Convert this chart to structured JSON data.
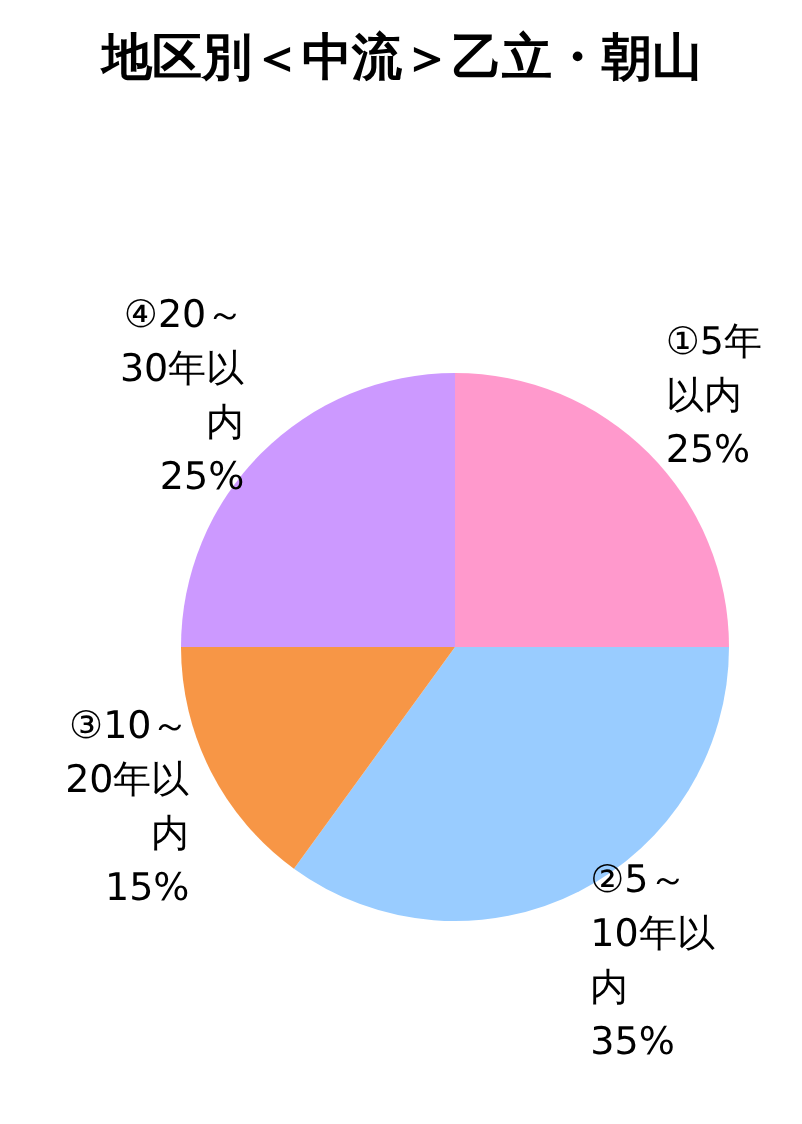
{
  "chart_data": {
    "type": "pie",
    "title": "地区別＜中流＞乙立・朝山",
    "categories": [
      "①5年以内",
      "②5～10年以内",
      "③10～20年以内",
      "④20～30年以内"
    ],
    "values": [
      25,
      35,
      15,
      25
    ],
    "value_labels": [
      "25%",
      "35%",
      "15%",
      "25%"
    ],
    "colors": [
      "#ff99cc",
      "#99ccff",
      "#f79646",
      "#cc99ff"
    ]
  }
}
